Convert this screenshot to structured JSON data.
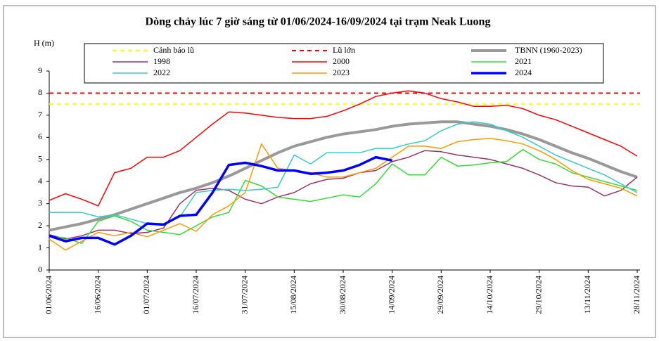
{
  "chart_data": {
    "type": "line",
    "title": "Dòng chảy lúc 7 giờ sáng từ 01/06/2024-16/09/2024 tại trạm Neak Luong",
    "y_label": "H (m)",
    "x": [
      "01/06/2024",
      "06/06/2024",
      "11/06/2024",
      "16/06/2024",
      "21/06/2024",
      "26/06/2024",
      "01/07/2024",
      "06/07/2024",
      "11/07/2024",
      "16/07/2024",
      "21/07/2024",
      "26/07/2024",
      "31/07/2024",
      "05/08/2024",
      "10/08/2024",
      "15/08/2024",
      "20/08/2024",
      "25/08/2024",
      "30/08/2024",
      "04/09/2024",
      "09/09/2024",
      "14/09/2024",
      "19/09/2024",
      "24/09/2024",
      "29/09/2024",
      "04/10/2024",
      "09/10/2024",
      "14/10/2024",
      "19/10/2024",
      "24/10/2024",
      "29/10/2024",
      "03/11/2024",
      "08/11/2024",
      "13/11/2024",
      "18/11/2024",
      "23/11/2024",
      "28/11/2024"
    ],
    "xlim": [
      "01/06/2024",
      "28/11/2024"
    ],
    "xticks": [
      "01/06/2024",
      "16/06/2024",
      "01/07/2024",
      "16/07/2024",
      "31/07/2024",
      "15/08/2024",
      "30/08/2024",
      "14/09/2024",
      "29/09/2024",
      "14/10/2024",
      "29/10/2024",
      "13/11/2024",
      "28/11/2024"
    ],
    "ylim": [
      0,
      9
    ],
    "yticks": [
      0,
      1,
      2,
      3,
      4,
      5,
      6,
      7,
      8,
      9
    ],
    "hlines": [
      {
        "name": "Cảnh báo lũ",
        "value": 7.5,
        "color": "#ffff00"
      },
      {
        "name": "Lũ lớn",
        "value": 8,
        "color": "#ff0000"
      }
    ],
    "series": [
      {
        "name": "TBNN (1960-2023)",
        "color": "#999999",
        "width": 4,
        "values": [
          1.8,
          1.95,
          2.1,
          2.3,
          2.5,
          2.75,
          3.0,
          3.25,
          3.5,
          3.7,
          3.95,
          4.25,
          4.6,
          4.95,
          5.3,
          5.6,
          5.8,
          6.0,
          6.15,
          6.25,
          6.35,
          6.5,
          6.6,
          6.65,
          6.7,
          6.7,
          6.6,
          6.5,
          6.35,
          6.15,
          5.9,
          5.6,
          5.3,
          5.05,
          4.75,
          4.45,
          4.2
        ]
      },
      {
        "name": "1998",
        "color": "#993366",
        "width": 1.5,
        "values": [
          1.6,
          1.4,
          1.55,
          1.8,
          1.8,
          1.65,
          1.7,
          1.9,
          3.0,
          3.6,
          3.7,
          3.6,
          3.2,
          3.0,
          3.3,
          3.5,
          3.9,
          4.1,
          4.15,
          4.4,
          4.5,
          4.9,
          5.1,
          5.4,
          5.35,
          5.2,
          5.1,
          5.0,
          4.8,
          4.6,
          4.3,
          3.95,
          3.8,
          3.75,
          3.35,
          3.6,
          4.2
        ]
      },
      {
        "name": "2000",
        "color": "#ff0000",
        "width": 1.5,
        "values": [
          3.15,
          3.45,
          3.2,
          2.9,
          4.4,
          4.6,
          5.1,
          5.1,
          5.4,
          6.0,
          6.6,
          7.15,
          7.1,
          7.0,
          6.9,
          6.85,
          6.85,
          6.95,
          7.2,
          7.5,
          7.85,
          8.0,
          8.1,
          8.0,
          7.75,
          7.6,
          7.4,
          7.4,
          7.45,
          7.3,
          7.0,
          6.8,
          6.5,
          6.2,
          5.9,
          5.6,
          5.15
        ]
      },
      {
        "name": "2021",
        "color": "#33dd33",
        "width": 1.5,
        "values": [
          1.5,
          1.45,
          1.2,
          2.2,
          2.45,
          2.2,
          1.8,
          1.7,
          1.6,
          2.0,
          2.4,
          2.6,
          4.05,
          3.8,
          3.3,
          3.2,
          3.1,
          3.25,
          3.4,
          3.3,
          3.9,
          4.8,
          4.3,
          4.3,
          5.1,
          4.7,
          4.75,
          4.85,
          4.9,
          5.45,
          5.0,
          4.8,
          4.4,
          4.2,
          4.0,
          3.8,
          3.6
        ]
      },
      {
        "name": "2022",
        "color": "#33cccc",
        "width": 1.5,
        "values": [
          2.6,
          2.6,
          2.6,
          2.4,
          2.5,
          2.3,
          2.1,
          2.1,
          2.4,
          3.5,
          3.6,
          3.65,
          3.6,
          3.65,
          3.75,
          5.2,
          4.8,
          5.3,
          5.3,
          5.3,
          5.5,
          5.5,
          5.7,
          5.85,
          6.3,
          6.6,
          6.7,
          6.6,
          6.3,
          6.0,
          5.6,
          5.2,
          4.9,
          4.6,
          4.3,
          3.9,
          3.5
        ]
      },
      {
        "name": "2023",
        "color": "#ff9900",
        "width": 1.5,
        "values": [
          1.4,
          0.9,
          1.3,
          1.7,
          1.55,
          1.7,
          1.5,
          1.8,
          2.1,
          1.75,
          2.5,
          2.9,
          3.5,
          5.7,
          4.6,
          4.5,
          4.4,
          4.2,
          4.2,
          4.4,
          4.6,
          5.1,
          5.6,
          5.6,
          5.5,
          5.8,
          5.9,
          5.95,
          5.85,
          5.7,
          5.4,
          5.0,
          4.5,
          4.1,
          3.9,
          3.7,
          3.35
        ]
      },
      {
        "name": "2024",
        "color": "#0000ff",
        "width": 3.5,
        "values": [
          1.55,
          1.3,
          1.45,
          1.45,
          1.15,
          1.55,
          2.1,
          2.05,
          2.45,
          2.5,
          3.5,
          4.75,
          4.85,
          4.7,
          4.5,
          4.5,
          4.35,
          4.4,
          4.5,
          4.75,
          5.1,
          4.95,
          null,
          null,
          null,
          null,
          null,
          null,
          null,
          null,
          null,
          null,
          null,
          null,
          null,
          null,
          null
        ]
      }
    ]
  }
}
